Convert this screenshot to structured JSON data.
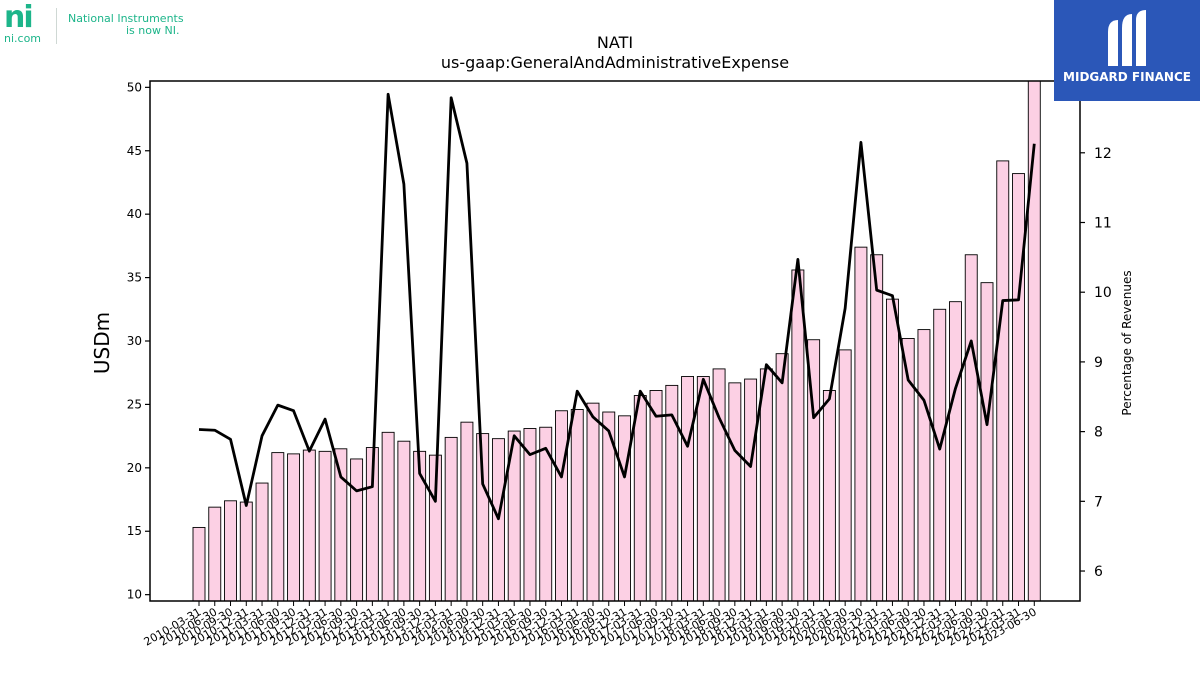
{
  "header": {
    "title": "NATI",
    "subtitle": "us-gaap:GeneralAndAdministrativeExpense"
  },
  "ni_logo": {
    "mark": "ni",
    "domain": "ni.com",
    "tagline_1": "National Instruments",
    "tagline_2": "is now NI.",
    "color": "#1db58a"
  },
  "brand_logo": {
    "name": "MIDGARD FINANCE",
    "background": "#2b57b8"
  },
  "chart_data": {
    "type": "bar",
    "ylabel": "USDm",
    "y2label": "Percentage of Revenues",
    "ylim": [
      9.5,
      50.5
    ],
    "y2lim": [
      5.57,
      13.03
    ],
    "yticks": [
      10,
      15,
      20,
      25,
      30,
      35,
      40,
      45,
      50
    ],
    "y2ticks": [
      6,
      7,
      8,
      9,
      10,
      11,
      12
    ],
    "bar_color": "#fcd0e4",
    "line_color": "#000000",
    "grid": false,
    "categories": [
      "2010-03-31",
      "2010-06-30",
      "2010-09-30",
      "2010-12-31",
      "2011-03-31",
      "2011-06-30",
      "2011-09-30",
      "2011-12-31",
      "2012-03-31",
      "2012-06-30",
      "2012-09-30",
      "2012-12-31",
      "2013-03-31",
      "2013-06-30",
      "2013-09-30",
      "2013-12-31",
      "2014-03-31",
      "2014-06-30",
      "2014-09-30",
      "2014-12-31",
      "2015-03-31",
      "2015-06-30",
      "2015-09-30",
      "2015-12-31",
      "2016-03-31",
      "2016-06-30",
      "2016-09-30",
      "2016-12-31",
      "2017-03-31",
      "2017-06-30",
      "2017-09-30",
      "2017-12-31",
      "2018-03-31",
      "2018-06-30",
      "2018-09-30",
      "2018-12-31",
      "2019-03-31",
      "2019-06-30",
      "2019-09-30",
      "2019-12-31",
      "2020-03-31",
      "2020-06-30",
      "2020-09-30",
      "2020-12-31",
      "2021-03-31",
      "2021-06-30",
      "2021-09-30",
      "2021-12-31",
      "2022-03-31",
      "2022-06-30",
      "2022-09-30",
      "2022-12-31",
      "2023-03-31",
      "2023-06-30"
    ],
    "series": [
      {
        "axis": "left",
        "kind": "bar",
        "values": [
          15.3,
          16.9,
          17.4,
          17.3,
          18.8,
          21.2,
          21.1,
          21.4,
          21.3,
          21.5,
          20.7,
          21.6,
          22.8,
          22.1,
          21.3,
          21.0,
          22.4,
          23.6,
          22.7,
          22.3,
          22.9,
          23.1,
          23.2,
          24.5,
          24.6,
          25.1,
          24.4,
          24.1,
          25.7,
          26.1,
          26.5,
          27.2,
          27.2,
          27.8,
          26.7,
          27.0,
          27.8,
          29.0,
          35.6,
          30.1,
          26.1,
          29.3,
          37.4,
          36.8,
          33.3,
          30.2,
          30.9,
          32.5,
          33.1,
          36.8,
          34.6,
          44.2,
          43.2,
          50.5
        ]
      },
      {
        "axis": "right",
        "kind": "line",
        "values": [
          8.03,
          8.02,
          7.89,
          6.94,
          7.94,
          8.38,
          8.3,
          7.72,
          8.18,
          7.35,
          7.15,
          7.21,
          12.84,
          11.55,
          7.4,
          7.0,
          12.79,
          11.85,
          7.25,
          6.75,
          7.94,
          7.67,
          7.76,
          7.35,
          8.58,
          8.21,
          8.01,
          7.35,
          8.58,
          8.22,
          8.24,
          7.79,
          8.75,
          8.2,
          7.73,
          7.5,
          8.96,
          8.7,
          10.47,
          8.2,
          8.47,
          9.77,
          12.15,
          10.03,
          9.95,
          8.74,
          8.45,
          7.75,
          8.62,
          9.3,
          8.1,
          9.88,
          9.89,
          12.13
        ]
      }
    ]
  }
}
